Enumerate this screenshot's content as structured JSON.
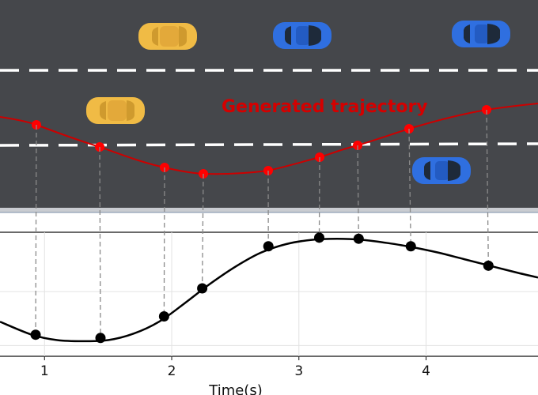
{
  "road": {
    "trajectory_label": "Generated trajectory",
    "colors": {
      "asphalt": "#45474b",
      "lane_marking": "#ffffff",
      "trajectory": "#cc0000",
      "trajectory_points": "#ff0000",
      "yellow_car": "#f0bb45",
      "blue_car": "#2f6fe0"
    },
    "cars": [
      {
        "name": "yellow-car-top",
        "color": "yellow"
      },
      {
        "name": "blue-car-top-middle",
        "color": "blue"
      },
      {
        "name": "blue-car-top-right",
        "color": "blue"
      },
      {
        "name": "yellow-car-middle",
        "color": "yellow"
      },
      {
        "name": "blue-car-bottom-right",
        "color": "blue"
      }
    ]
  },
  "chart_data": {
    "type": "line",
    "xlabel": "Time(s)",
    "ylabel": "",
    "xlim": [
      0.65,
      4.88
    ],
    "ylim": [
      -0.1,
      1.05
    ],
    "xticks": [
      "1",
      "2",
      "3",
      "4"
    ],
    "xtick_values": [
      1,
      2,
      3,
      4
    ],
    "grid": true,
    "curve": {
      "x": [
        0.65,
        0.9,
        1.1,
        1.3,
        1.5,
        1.7,
        1.9,
        2.1,
        2.3,
        2.5,
        2.7,
        2.9,
        3.1,
        3.3,
        3.5,
        3.7,
        3.9,
        4.1,
        4.3,
        4.5,
        4.7,
        4.88
      ],
      "y": [
        0.22,
        0.1,
        0.05,
        0.04,
        0.05,
        0.11,
        0.22,
        0.39,
        0.57,
        0.73,
        0.86,
        0.94,
        0.98,
        0.99,
        0.98,
        0.95,
        0.91,
        0.86,
        0.8,
        0.74,
        0.68,
        0.63
      ]
    },
    "points": {
      "x": [
        0.93,
        1.44,
        1.94,
        2.24,
        2.76,
        3.16,
        3.47,
        3.88,
        4.49
      ],
      "y": [
        0.1,
        0.07,
        0.27,
        0.53,
        0.92,
        1.0,
        0.99,
        0.92,
        0.74
      ]
    },
    "line_color": "#000000"
  }
}
